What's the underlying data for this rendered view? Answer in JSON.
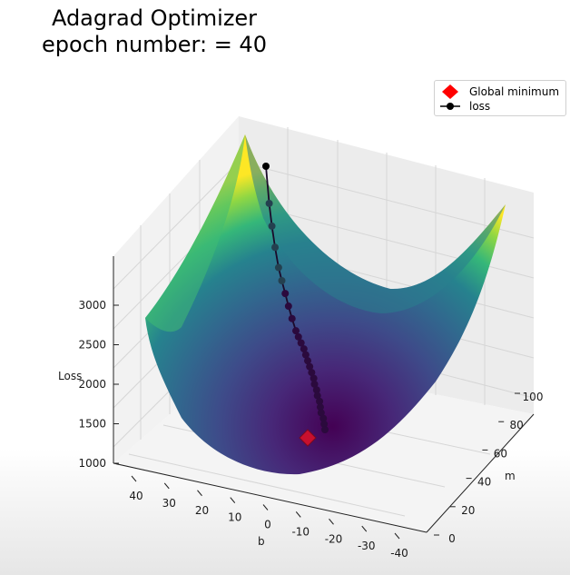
{
  "chart_data": {
    "type": "surface3d",
    "title_lines": [
      "Adagrad Optimizer",
      "epoch number: = 40"
    ],
    "xlabel": "m",
    "ylabel": "b",
    "zlabel": "Loss",
    "x_ticks": [
      0,
      20,
      40,
      60,
      80,
      100
    ],
    "y_ticks": [
      40,
      30,
      20,
      10,
      0,
      -10,
      -20,
      -30,
      -40
    ],
    "z_ticks": [
      1000,
      1500,
      2000,
      2500,
      3000
    ],
    "colormap": "viridis",
    "legend": [
      {
        "label": "Global minimum",
        "marker": "diamond",
        "color": "#ff0000"
      },
      {
        "label": "loss",
        "marker": "line-dot",
        "color": "#000000"
      }
    ],
    "global_minimum": {
      "m": 40,
      "b": 0
    },
    "loss_path": [
      {
        "m": 100,
        "b": 40
      },
      {
        "m": 92,
        "b": 36
      },
      {
        "m": 86,
        "b": 33
      },
      {
        "m": 80,
        "b": 30
      },
      {
        "m": 75,
        "b": 27
      },
      {
        "m": 70,
        "b": 25
      },
      {
        "m": 66,
        "b": 23
      },
      {
        "m": 63,
        "b": 21
      },
      {
        "m": 60,
        "b": 19
      },
      {
        "m": 57,
        "b": 17
      },
      {
        "m": 55,
        "b": 16
      },
      {
        "m": 53,
        "b": 15
      },
      {
        "m": 51,
        "b": 14
      },
      {
        "m": 50,
        "b": 13
      },
      {
        "m": 49,
        "b": 12
      },
      {
        "m": 48,
        "b": 11
      },
      {
        "m": 47,
        "b": 10
      },
      {
        "m": 46,
        "b": 9
      },
      {
        "m": 46,
        "b": 8
      },
      {
        "m": 45,
        "b": 7
      },
      {
        "m": 45,
        "b": 6
      },
      {
        "m": 44,
        "b": 5
      },
      {
        "m": 44,
        "b": 4
      },
      {
        "m": 44,
        "b": 3
      },
      {
        "m": 43,
        "b": 2
      },
      {
        "m": 43,
        "b": 1
      },
      {
        "m": 43,
        "b": 0
      }
    ]
  }
}
